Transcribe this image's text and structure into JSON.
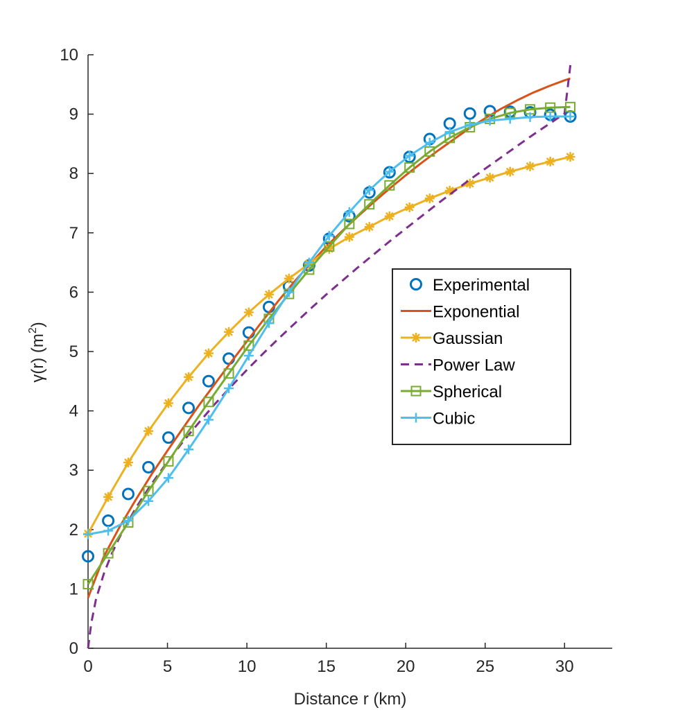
{
  "chart_data": {
    "type": "line",
    "xlabel": "Distance r (km)",
    "ylabel": {
      "main": "γ(r) (m",
      "sup": "2",
      "tail": ")"
    },
    "xlim": [
      0,
      33
    ],
    "ylim": [
      0,
      10
    ],
    "xticks": [
      0,
      5,
      10,
      15,
      20,
      25,
      30
    ],
    "yticks": [
      0,
      1,
      2,
      3,
      4,
      5,
      6,
      7,
      8,
      9,
      10
    ],
    "grid": false,
    "legend_position": "right-middle",
    "series": [
      {
        "name": "Experimental",
        "color": "#0072BD",
        "marker": "circle",
        "line": "none",
        "x": [
          0,
          1.27,
          2.53,
          3.8,
          5.06,
          6.33,
          7.59,
          8.86,
          10.12,
          11.39,
          12.65,
          13.92,
          15.18,
          16.45,
          17.71,
          18.98,
          20.24,
          21.51,
          22.77,
          24.04,
          25.3,
          26.57,
          27.83,
          29.1,
          30.36
        ],
        "y": [
          1.55,
          2.15,
          2.6,
          3.05,
          3.55,
          4.05,
          4.5,
          4.88,
          5.32,
          5.75,
          6.1,
          6.45,
          6.9,
          7.28,
          7.68,
          8.02,
          8.28,
          8.58,
          8.84,
          9.01,
          9.05,
          9.04,
          9.03,
          8.99,
          8.96
        ]
      },
      {
        "name": "Exponential",
        "color": "#D95319",
        "marker": "none",
        "line": "solid",
        "x": [
          0,
          1,
          2,
          3,
          4,
          5,
          6,
          7,
          8,
          9,
          10,
          11,
          12,
          13,
          14,
          15,
          16,
          17,
          18,
          19,
          20,
          21,
          22,
          23,
          24,
          25,
          26,
          27,
          28,
          29,
          30,
          30.36
        ],
        "y": [
          0.85,
          1.55,
          2.05,
          2.5,
          2.93,
          3.33,
          3.72,
          4.1,
          4.46,
          4.82,
          5.17,
          5.52,
          5.86,
          6.18,
          6.48,
          6.77,
          7.03,
          7.28,
          7.52,
          7.75,
          7.97,
          8.18,
          8.38,
          8.57,
          8.76,
          8.93,
          9.09,
          9.23,
          9.36,
          9.47,
          9.57,
          9.6
        ]
      },
      {
        "name": "Gaussian",
        "color": "#EDB120",
        "marker": "asterisk",
        "line": "solid",
        "x": [
          0,
          1.27,
          2.53,
          3.8,
          5.06,
          6.33,
          7.59,
          8.86,
          10.12,
          11.39,
          12.65,
          13.92,
          15.18,
          16.45,
          17.71,
          18.98,
          20.24,
          21.51,
          22.77,
          24.04,
          25.3,
          26.57,
          27.83,
          29.1,
          30.36
        ],
        "y": [
          1.93,
          2.55,
          3.13,
          3.66,
          4.13,
          4.57,
          4.97,
          5.33,
          5.66,
          5.96,
          6.23,
          6.48,
          6.73,
          6.93,
          7.1,
          7.28,
          7.43,
          7.58,
          7.71,
          7.83,
          7.93,
          8.03,
          8.12,
          8.2,
          8.28
        ]
      },
      {
        "name": "Power Law",
        "color": "#7E2F8E",
        "marker": "none",
        "line": "dashed",
        "x": [
          0,
          0.2,
          0.5,
          1,
          1.5,
          2,
          3,
          4,
          5,
          6,
          7,
          8,
          9,
          10,
          11,
          12,
          13,
          14,
          15,
          16,
          17,
          18,
          19,
          20,
          21,
          22,
          23,
          24,
          25,
          26,
          27,
          28,
          29,
          30,
          30.4
        ],
        "y": [
          0,
          0.42,
          0.83,
          1.26,
          1.6,
          1.88,
          2.36,
          2.77,
          3.14,
          3.49,
          3.81,
          4.12,
          4.41,
          4.69,
          4.96,
          5.22,
          5.47,
          5.72,
          5.96,
          6.19,
          6.42,
          6.64,
          6.86,
          7.07,
          7.28,
          7.49,
          7.69,
          7.89,
          8.08,
          8.27,
          8.46,
          8.65,
          8.83,
          9.01,
          9.9
        ]
      },
      {
        "name": "Spherical",
        "color": "#77AC30",
        "marker": "square",
        "line": "solid",
        "x": [
          0,
          1.27,
          2.53,
          3.8,
          5.06,
          6.33,
          7.59,
          8.86,
          10.12,
          11.39,
          12.65,
          13.92,
          15.18,
          16.45,
          17.71,
          18.98,
          20.24,
          21.51,
          22.77,
          24.04,
          25.3,
          26.57,
          27.83,
          29.1,
          30.36
        ],
        "y": [
          1.08,
          1.6,
          2.12,
          2.65,
          3.15,
          3.66,
          4.15,
          4.63,
          5.1,
          5.55,
          5.97,
          6.38,
          6.77,
          7.15,
          7.48,
          7.8,
          8.1,
          8.37,
          8.6,
          8.78,
          8.92,
          9.02,
          9.08,
          9.11,
          9.12
        ]
      },
      {
        "name": "Cubic",
        "color": "#4DBEEE",
        "marker": "plus",
        "line": "solid",
        "x": [
          0,
          1.27,
          2.53,
          3.8,
          5.06,
          6.33,
          7.59,
          8.86,
          10.12,
          11.39,
          12.65,
          13.92,
          15.18,
          16.45,
          17.71,
          18.98,
          20.24,
          21.51,
          22.77,
          24.04,
          25.3,
          26.57,
          27.83,
          29.1,
          30.36
        ],
        "y": [
          1.92,
          1.98,
          2.15,
          2.48,
          2.87,
          3.35,
          3.85,
          4.38,
          4.93,
          5.48,
          6.0,
          6.5,
          6.95,
          7.35,
          7.72,
          8.03,
          8.3,
          8.52,
          8.7,
          8.82,
          8.89,
          8.92,
          8.95,
          8.96,
          8.96
        ]
      }
    ]
  }
}
